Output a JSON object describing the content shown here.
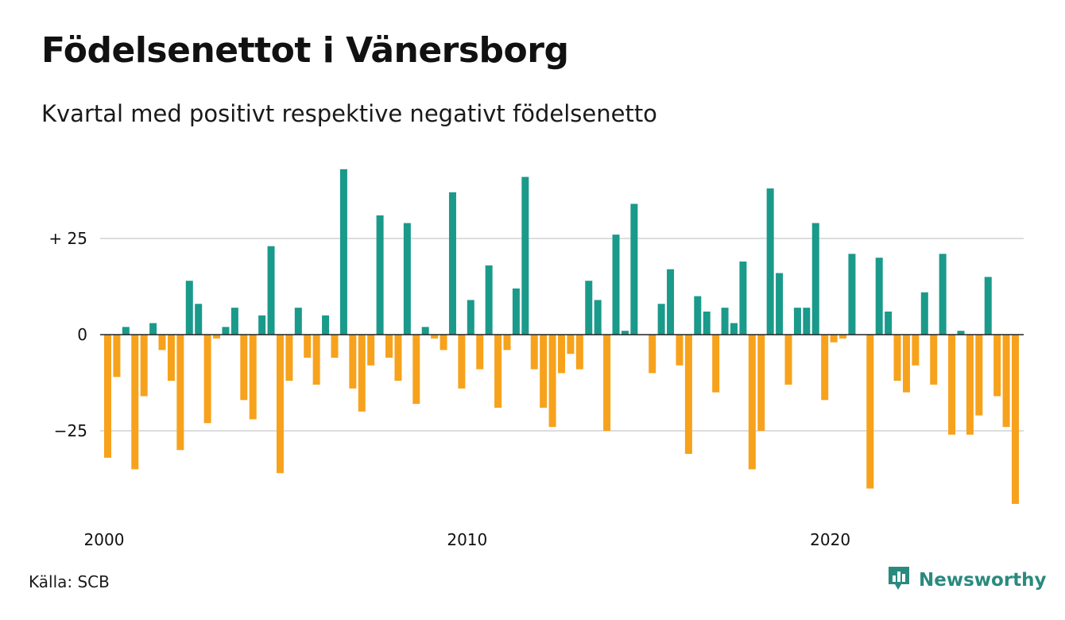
{
  "title": "Födelsenettot i Vänersborg",
  "subtitle": "Kvartal med positivt respektive negativt födelsenetto",
  "source": "Källa: SCB",
  "brand": "Newsworthy",
  "colors": {
    "positive": "#1a9a8a",
    "negative": "#f7a21c",
    "grid": "#dddddd",
    "zero_line": "#222222",
    "brand": "#2a8a7f"
  },
  "icons": {
    "logo": "bar-chart-speech-bubble-icon"
  },
  "chart_data": {
    "type": "bar",
    "x_unit": "quarter",
    "x_start": "2000 Q1",
    "x_ticks": [
      {
        "year": 2000,
        "label": "2000"
      },
      {
        "year": 2010,
        "label": "2010"
      },
      {
        "year": 2020,
        "label": "2020"
      }
    ],
    "y_ticks": [
      {
        "value": 25,
        "label": "+ 25"
      },
      {
        "value": 0,
        "label": "0"
      },
      {
        "value": -25,
        "label": "−25"
      }
    ],
    "ylim": [
      -48,
      44
    ],
    "grid": true,
    "values": [
      -32,
      -11,
      2,
      -35,
      -16,
      3,
      -4,
      -12,
      -30,
      14,
      8,
      -23,
      -1,
      2,
      7,
      -17,
      -22,
      5,
      23,
      -36,
      -12,
      7,
      -6,
      -13,
      5,
      -6,
      43,
      -14,
      -20,
      -8,
      31,
      -6,
      -12,
      29,
      -18,
      2,
      -1,
      -4,
      37,
      -14,
      9,
      -9,
      18,
      -19,
      -4,
      12,
      41,
      -9,
      -19,
      -24,
      -10,
      -5,
      -9,
      14,
      9,
      -25,
      26,
      1,
      34,
      0,
      -10,
      8,
      17,
      -8,
      -31,
      10,
      6,
      -15,
      7,
      3,
      19,
      -35,
      -25,
      38,
      16,
      -13,
      7,
      7,
      29,
      -17,
      -2,
      -1,
      21,
      0,
      -40,
      20,
      6,
      -12,
      -15,
      -8,
      11,
      -13,
      21,
      -26,
      1,
      -26,
      -21,
      15,
      -16,
      -24,
      -44
    ]
  }
}
